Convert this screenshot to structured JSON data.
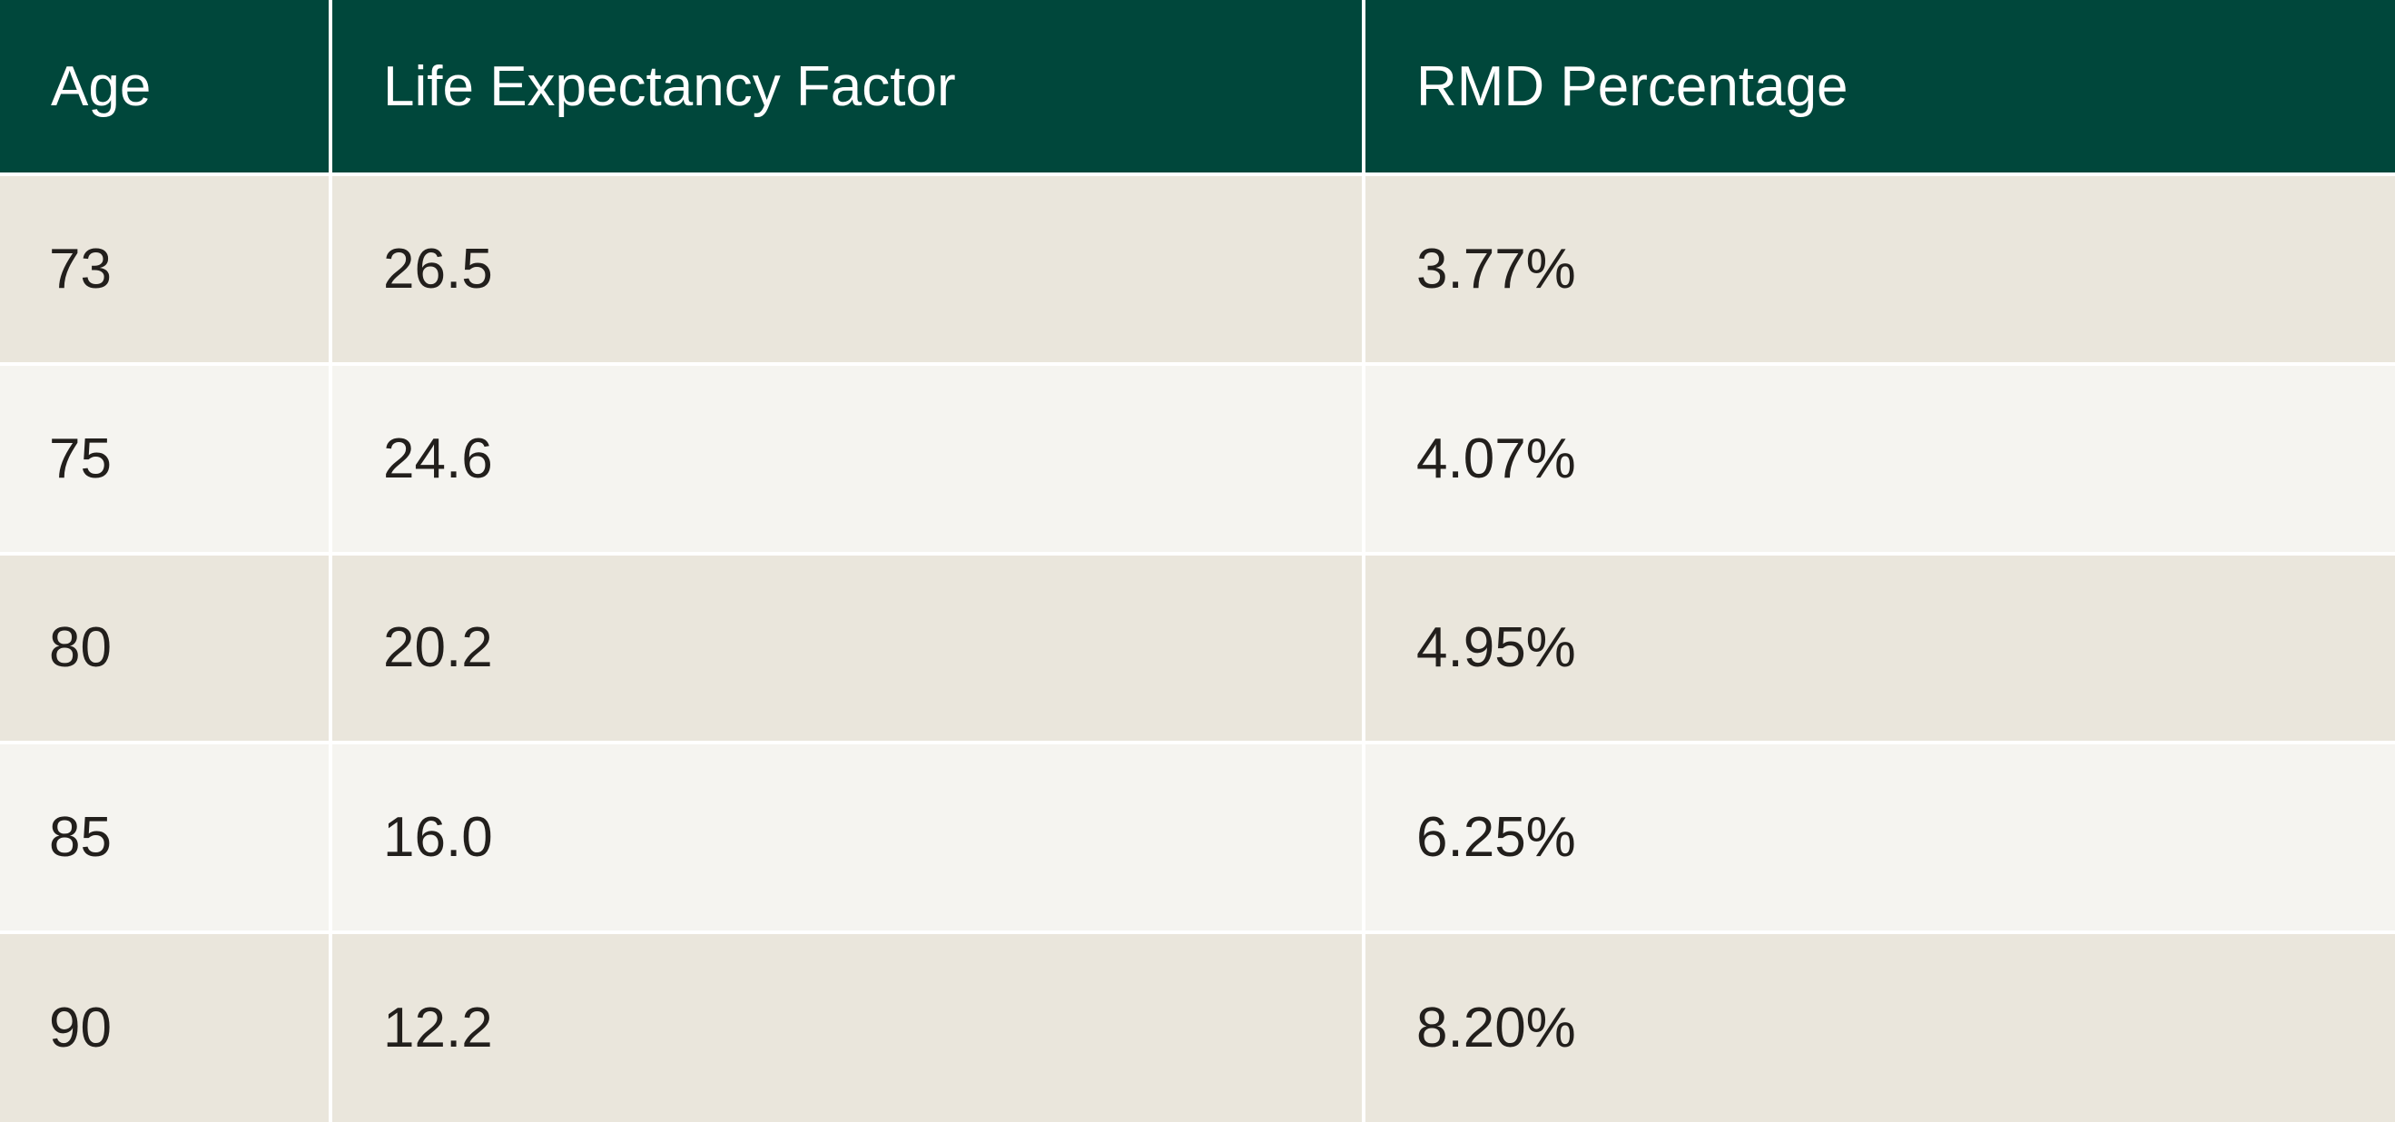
{
  "table": {
    "headers": [
      "Age",
      "Life Expectancy Factor",
      "RMD Percentage"
    ],
    "rows": [
      [
        "73",
        "26.5",
        "3.77%"
      ],
      [
        "75",
        "24.6",
        "4.07%"
      ],
      [
        "80",
        "20.2",
        "4.95%"
      ],
      [
        "85",
        "16.0",
        "6.25%"
      ],
      [
        "90",
        "12.2",
        "8.20%"
      ]
    ]
  },
  "colors": {
    "header_bg": "#00473b",
    "header_text": "#ffffff",
    "row_odd_bg": "#eae6dc",
    "row_even_bg": "#f5f4f0",
    "cell_text": "#221f1c"
  }
}
